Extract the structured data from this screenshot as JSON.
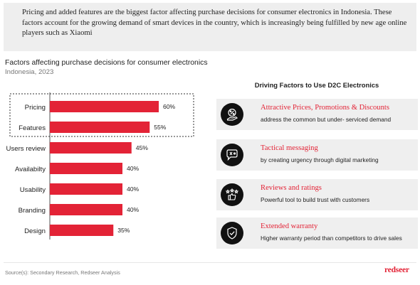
{
  "banner": {
    "text": "Pricing and added features are the biggest factor affecting purchase decisions for consumer electronics in Indonesia. These factors account for the growing demand of smart devices in the country, which is increasingly being fulfilled by new age online players such as Xiaomi"
  },
  "chart_data": {
    "type": "bar",
    "orientation": "horizontal",
    "title": "Factors affecting purchase decisions for consumer electronics",
    "subtitle": "Indonesia, 2023",
    "categories": [
      "Pricing",
      "Features",
      "Users review",
      "Availabilty",
      "Usability",
      "Branding",
      "Design"
    ],
    "values": [
      60,
      55,
      45,
      40,
      40,
      40,
      35
    ],
    "value_labels": [
      "60%",
      "55%",
      "45%",
      "40%",
      "40%",
      "40%",
      "35%"
    ],
    "highlighted_categories": [
      "Pricing",
      "Features"
    ],
    "bar_color": "#e32336",
    "xlim": [
      0,
      100
    ],
    "grid": false
  },
  "drivers": {
    "title": "Driving Factors to Use D2C Electronics",
    "items": [
      {
        "heading": "Attractive Prices, Promotions & Discounts",
        "description": "address the common but under- serviced demand",
        "icon": "discount-hand-icon"
      },
      {
        "heading": "Tactical messaging",
        "description": "by creating urgency through digital marketing",
        "icon": "message-bubble-icon"
      },
      {
        "heading": "Reviews and ratings",
        "description": "Powerful tool to build trust with customers",
        "icon": "thumbs-up-stars-icon"
      },
      {
        "heading": "Extended warranty",
        "description": "Higher warranty period than competitors to drive sales",
        "icon": "shield-check-icon"
      }
    ]
  },
  "footer": {
    "source": "Source(s): Secondary Research, Redseer Analysis",
    "brand": "redseer"
  },
  "colors": {
    "accent": "#e32336",
    "icon_bg": "#111111",
    "card_bg": "#efefef",
    "banner_bg": "#eeeeee"
  }
}
